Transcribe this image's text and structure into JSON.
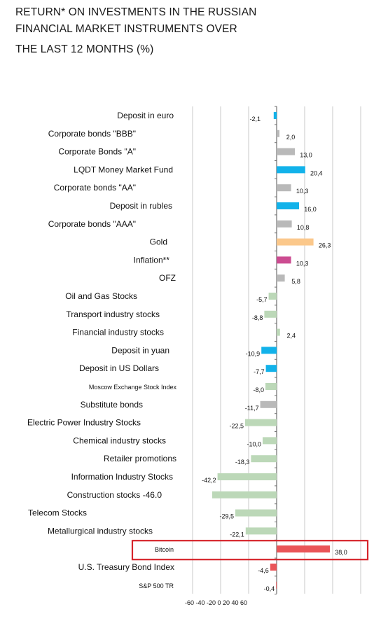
{
  "colors": {
    "grid": "#c8c8c8",
    "axis": "#6e6e6e",
    "blue": "#12b2ea",
    "gray": "#b9b9b9",
    "gold": "#fbc88b",
    "pink": "#cc4c91",
    "green": "#bcd8b8",
    "red": "#ea5558",
    "highlight_border": "#d6232a"
  },
  "chart_data": {
    "type": "bar",
    "orientation": "horizontal",
    "title": "RETURN* ON INVESTMENTS IN THE RUSSIAN FINANCIAL MARKET INSTRUMENTS OVER THE LAST 12 MONTHS (%)",
    "title_lines": [
      "RETURN* ON INVESTMENTS IN THE RUSSIAN",
      "FINANCIAL MARKET INSTRUMENTS OVER",
      "THE LAST 12 MONTHS (%)"
    ],
    "x_tick_text": "-60 -40 -20 0 20 40 60",
    "xlim": [
      -60,
      60
    ],
    "grid": true,
    "highlighted_category": "Bitcoin",
    "categories": [
      {
        "label": "Deposit in euro",
        "value": -2.1,
        "value_label": "-2,1",
        "color": "blue"
      },
      {
        "label": "Corporate bonds \"BBB\"",
        "value": 2.0,
        "value_label": "2,0",
        "color": "gray"
      },
      {
        "label": "Corporate Bonds \"A\"",
        "value": 13.0,
        "value_label": "13,0",
        "color": "gray"
      },
      {
        "label": "LQDT Money Market Fund",
        "value": 20.4,
        "value_label": "20,4",
        "color": "blue"
      },
      {
        "label": "Corporate bonds \"AA\"",
        "value": 10.3,
        "value_label": "10,3",
        "color": "gray"
      },
      {
        "label": "Deposit in rubles",
        "value": 16.0,
        "value_label": "16,0",
        "color": "blue"
      },
      {
        "label": "Corporate bonds \"AAA\"",
        "value": 10.8,
        "value_label": "10,8",
        "color": "gray"
      },
      {
        "label": "Gold",
        "value": 26.3,
        "value_label": "26,3",
        "color": "gold"
      },
      {
        "label": "Inflation**",
        "value": 10.3,
        "value_label": "10,3",
        "color": "pink"
      },
      {
        "label": "OFZ",
        "value": 5.8,
        "value_label": "5,8",
        "color": "gray"
      },
      {
        "label": "Oil and Gas Stocks",
        "value": -5.7,
        "value_label": "-5,7",
        "color": "green"
      },
      {
        "label": "Transport industry stocks",
        "value": -8.8,
        "value_label": "-8,8",
        "color": "green"
      },
      {
        "label": "Financial industry stocks",
        "value": 2.4,
        "value_label": "2,4",
        "color": "green"
      },
      {
        "label": "Deposit in yuan",
        "value": -10.9,
        "value_label": "-10,9",
        "color": "blue"
      },
      {
        "label": "Deposit in US Dollars",
        "value": -7.7,
        "value_label": "-7,7",
        "color": "blue"
      },
      {
        "label": "Moscow Exchange Stock Index",
        "value": -8.0,
        "value_label": "-8,0",
        "color": "green"
      },
      {
        "label": "Substitute bonds",
        "value": -11.7,
        "value_label": "-11,7",
        "color": "gray"
      },
      {
        "label": "Electric Power Industry Stocks",
        "value": -22.5,
        "value_label": "-22,5",
        "color": "green"
      },
      {
        "label": "Chemical industry stocks",
        "value": -10.0,
        "value_label": "-10,0",
        "color": "green"
      },
      {
        "label": "Retailer promotions",
        "value": -18.3,
        "value_label": "-18,3",
        "color": "green"
      },
      {
        "label": "Information Industry Stocks",
        "value": -42.2,
        "value_label": "-42,2",
        "color": "green"
      },
      {
        "label": "Construction stocks -46.0",
        "value": -46.0,
        "value_label": "",
        "color": "green"
      },
      {
        "label": "Telecom Stocks",
        "value": -29.5,
        "value_label": "-29,5",
        "color": "green"
      },
      {
        "label": "Metallurgical industry stocks",
        "value": -22.1,
        "value_label": "-22,1",
        "color": "green"
      },
      {
        "label": "Bitcoin",
        "value": 38.0,
        "value_label": "38,0",
        "color": "red"
      },
      {
        "label": "U.S. Treasury Bond Index",
        "value": -4.6,
        "value_label": "-4,6",
        "color": "red"
      },
      {
        "label": "S&P 500 TR",
        "value": -0.4,
        "value_label": "-0,4",
        "color": "red"
      }
    ]
  }
}
